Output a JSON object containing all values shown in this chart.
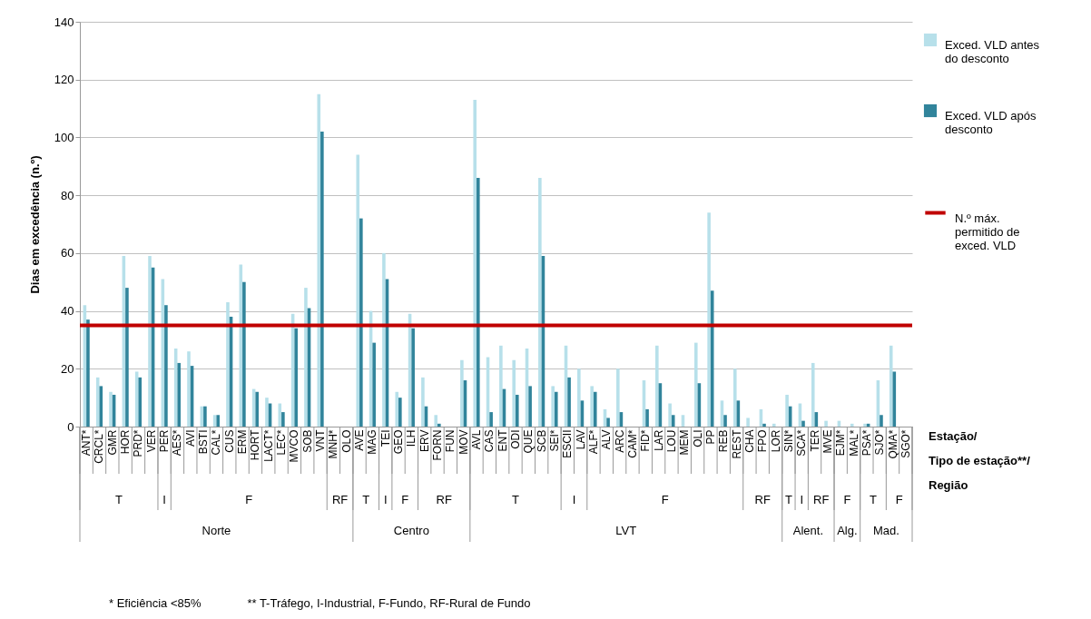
{
  "chart_data": {
    "type": "bar",
    "ylabel": "Dias em excedência (n.º)",
    "xlabel": "Estação/\nTipo de estação**/\nRegião",
    "categories": [
      "ANT*",
      "CRCL*",
      "GMR",
      "HOR",
      "PRD*",
      "VER",
      "PER",
      "AES*",
      "AVI",
      "BSTI",
      "CAL*",
      "CUS",
      "ERM",
      "HORT",
      "LACT*",
      "LEC*",
      "MVCO",
      "SOB",
      "VNT",
      "MNH*",
      "OLO",
      "AVE",
      "MAG",
      "TEI",
      "GEO",
      "ILH",
      "ERV",
      "FORN",
      "FUN",
      "MOV",
      "AVL",
      "CAS",
      "ENT",
      "ODI",
      "QUE",
      "SCB",
      "SEI*",
      "ESCII",
      "LAV",
      "ALF*",
      "ALV",
      "ARC",
      "CAM*",
      "FID*",
      "LAR",
      "LOU",
      "MEM",
      "OLI",
      "PP",
      "REB",
      "REST",
      "CHA",
      "FPO",
      "LOR",
      "SIN*",
      "SCA*",
      "TER",
      "MVE",
      "EJM*",
      "MAL*",
      "PSA*",
      "SJO*",
      "QMA*",
      "SGO*"
    ],
    "series": [
      {
        "name": "Exced. VLD antes do desconto",
        "color": "#b7e0ea",
        "values": [
          42,
          17,
          12,
          59,
          19,
          59,
          51,
          27,
          26,
          7,
          4,
          43,
          56,
          13,
          10,
          8,
          39,
          48,
          115,
          0,
          0,
          94,
          40,
          60,
          12,
          39,
          17,
          4,
          0,
          23,
          113,
          24,
          28,
          23,
          27,
          86,
          14,
          28,
          20,
          14,
          6,
          20,
          0,
          16,
          28,
          8,
          4,
          29,
          74,
          9,
          20,
          3,
          6,
          1,
          11,
          8,
          22,
          2,
          2,
          1,
          1,
          16,
          28,
          0
        ]
      },
      {
        "name": "Exced. VLD após desconto",
        "color": "#31849b",
        "values": [
          37,
          14,
          11,
          48,
          17,
          55,
          42,
          22,
          21,
          7,
          4,
          38,
          50,
          12,
          8,
          5,
          34,
          41,
          102,
          0,
          0,
          72,
          29,
          51,
          10,
          34,
          7,
          1,
          0,
          16,
          86,
          5,
          13,
          11,
          14,
          59,
          12,
          17,
          9,
          12,
          3,
          5,
          0,
          6,
          15,
          4,
          0,
          15,
          47,
          4,
          9,
          0,
          1,
          0,
          7,
          2,
          5,
          0,
          0,
          0,
          1,
          4,
          19,
          0
        ]
      }
    ],
    "ylim": [
      0,
      140
    ],
    "yticks": [
      0,
      20,
      40,
      60,
      80,
      100,
      120,
      140
    ],
    "grid": "y",
    "legend": "right",
    "ref_lines": [
      {
        "axis": "y",
        "value": 35,
        "label": "N.º máx. permitido de exced. VLD",
        "color": "#c00000"
      }
    ],
    "annotations": [
      "T",
      "I",
      "F",
      "RF",
      "T",
      "I",
      "F",
      "RF",
      "T",
      "I",
      "F",
      "RF",
      "T",
      "I",
      "RF",
      "F",
      "T",
      "F",
      "Norte",
      "Centro",
      "LVT",
      "Alent.",
      "Alg.",
      "Mad.",
      "* Eficiência <85%",
      "** T-Tráfego, I-Industrial, F-Fundo, RF-Rural de Fundo"
    ]
  }
}
